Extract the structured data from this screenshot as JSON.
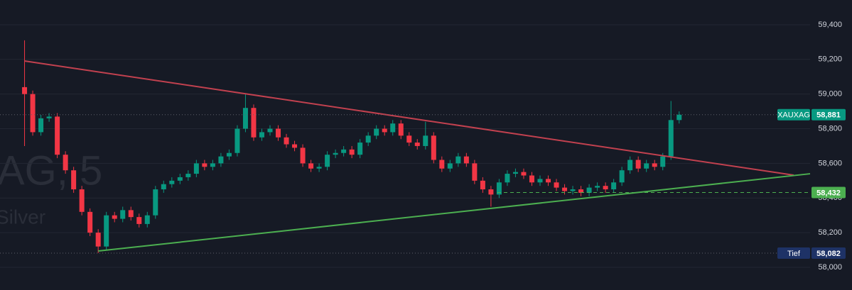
{
  "chart_data": {
    "type": "candlestick",
    "watermark": {
      "symbol": "AG, 5",
      "description": "Silver"
    },
    "open": [
      59040,
      59000,
      58780,
      58860,
      58870,
      58650,
      58560,
      58450,
      58320,
      58200,
      58120,
      58300,
      58280,
      58330,
      58290,
      58250,
      58300,
      58450,
      58480,
      58500,
      58520,
      58540,
      58600,
      58580,
      58600,
      58640,
      58660,
      58800,
      58920,
      58750,
      58780,
      58800,
      58750,
      58710,
      58690,
      58600,
      58570,
      58580,
      58650,
      58660,
      58680,
      58650,
      58720,
      58760,
      58800,
      58780,
      58830,
      58760,
      58720,
      58700,
      58760,
      58620,
      58570,
      58600,
      58640,
      58600,
      58500,
      58450,
      58420,
      58490,
      58540,
      58550,
      58530,
      58490,
      58510,
      58490,
      58460,
      58440,
      58450,
      58430,
      58460,
      58470,
      58450,
      58490,
      58560,
      58620,
      58570,
      58600,
      58580,
      58640,
      58850
    ],
    "high": [
      59310,
      59020,
      58880,
      58890,
      58890,
      58670,
      58580,
      58470,
      58340,
      58220,
      58320,
      58320,
      58350,
      58350,
      58310,
      58320,
      58470,
      58500,
      58520,
      58540,
      58560,
      58620,
      58620,
      58620,
      58660,
      58680,
      58820,
      59000,
      58940,
      58800,
      58820,
      58820,
      58770,
      58730,
      58710,
      58620,
      58600,
      58670,
      58680,
      58700,
      58700,
      58740,
      58780,
      58820,
      58820,
      58850,
      58850,
      58780,
      58740,
      58840,
      58780,
      58640,
      58620,
      58660,
      58660,
      58620,
      58520,
      58470,
      58510,
      58560,
      58570,
      58570,
      58550,
      58530,
      58530,
      58510,
      58480,
      58470,
      58470,
      58480,
      58490,
      58490,
      58510,
      58580,
      58640,
      58640,
      58620,
      58620,
      58660,
      58960,
      58900
    ],
    "low": [
      58700,
      58760,
      58760,
      58840,
      58630,
      58540,
      58430,
      58300,
      58180,
      58082,
      58100,
      58260,
      58260,
      58270,
      58230,
      58230,
      58280,
      58430,
      58460,
      58480,
      58500,
      58520,
      58560,
      58560,
      58580,
      58620,
      58640,
      58780,
      58730,
      58730,
      58760,
      58730,
      58690,
      58670,
      58580,
      58550,
      58550,
      58560,
      58630,
      58640,
      58630,
      58630,
      58700,
      58740,
      58760,
      58760,
      58740,
      58700,
      58680,
      58680,
      58600,
      58550,
      58550,
      58580,
      58580,
      58480,
      58430,
      58350,
      58400,
      58470,
      58520,
      58510,
      58470,
      58470,
      58470,
      58440,
      58420,
      58420,
      58410,
      58410,
      58440,
      58430,
      58430,
      58470,
      58540,
      58550,
      58550,
      58560,
      58560,
      58620,
      58830
    ],
    "close": [
      59000,
      58780,
      58860,
      58870,
      58650,
      58560,
      58450,
      58320,
      58200,
      58120,
      58300,
      58280,
      58330,
      58290,
      58250,
      58300,
      58450,
      58480,
      58500,
      58520,
      58540,
      58600,
      58580,
      58600,
      58640,
      58660,
      58800,
      58920,
      58750,
      58780,
      58800,
      58750,
      58710,
      58690,
      58600,
      58570,
      58580,
      58650,
      58660,
      58680,
      58650,
      58720,
      58760,
      58800,
      58780,
      58830,
      58760,
      58720,
      58700,
      58760,
      58620,
      58570,
      58600,
      58640,
      58600,
      58500,
      58450,
      58420,
      58490,
      58540,
      58550,
      58530,
      58490,
      58510,
      58490,
      58460,
      58440,
      58450,
      58430,
      58460,
      58470,
      58450,
      58490,
      58560,
      58620,
      58570,
      58600,
      58580,
      58640,
      58850,
      58881
    ],
    "up_color": "#089981",
    "down_color": "#f23645",
    "xlim": [
      -3,
      96
    ],
    "ylim": [
      57869,
      59543
    ],
    "yticks": [
      {
        "value": 58000,
        "label": "58,000"
      },
      {
        "value": 58200,
        "label": "58,200"
      },
      {
        "value": 58400,
        "label": "58,400"
      },
      {
        "value": 58600,
        "label": "58,600"
      },
      {
        "value": 58800,
        "label": "58,800"
      },
      {
        "value": 59000,
        "label": "59,000"
      },
      {
        "value": 59200,
        "label": "59,200"
      },
      {
        "value": 59400,
        "label": "59,400"
      }
    ],
    "grid": true,
    "trendlines": [
      {
        "color": "#c2414f",
        "x": [
          0,
          94
        ],
        "y": [
          59191,
          58532
        ]
      },
      {
        "color": "#4caf50",
        "x": [
          9,
          96
        ],
        "y": [
          58094,
          58540
        ]
      }
    ],
    "price_lines": [
      {
        "label": "XAUXAG",
        "value": 58881,
        "value_label": "58,881",
        "color": "#089981",
        "style": "dotted"
      },
      {
        "value": 58432,
        "value_label": "58,432",
        "color": "#4caf50",
        "style": "dashed"
      },
      {
        "label": "Tief",
        "value": 58082,
        "value_label": "58,082",
        "color": "#1e3266",
        "style": "dotted"
      }
    ]
  }
}
